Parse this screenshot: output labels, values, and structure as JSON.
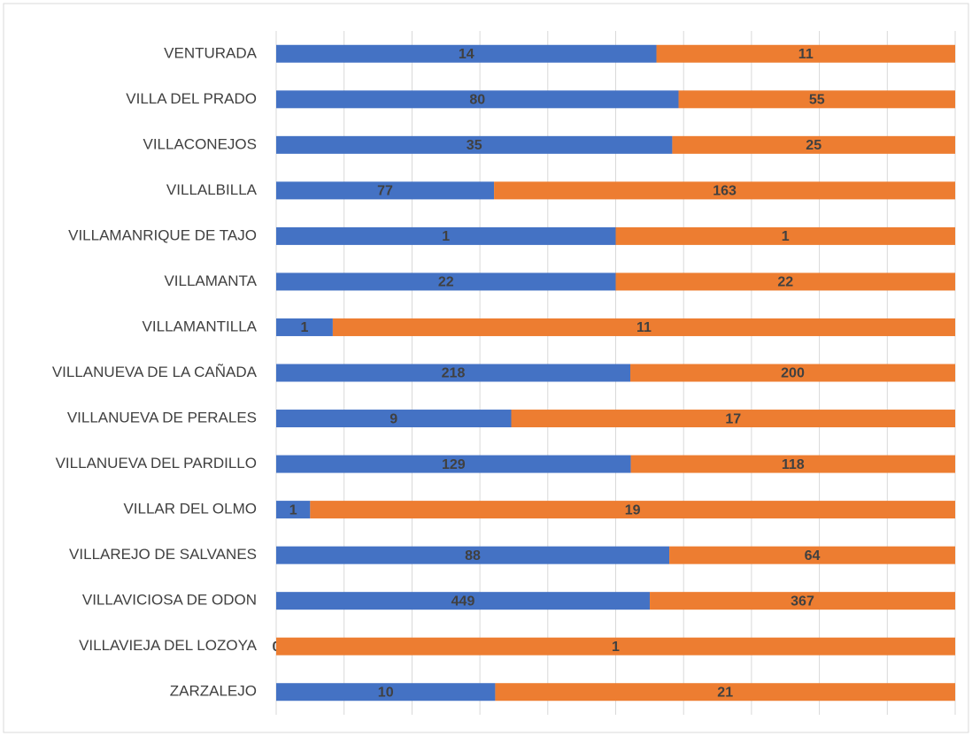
{
  "chart_data": {
    "type": "bar",
    "stacked": "percent",
    "orientation": "horizontal",
    "grid": true,
    "categories": [
      "VENTURADA",
      "VILLA DEL PRADO",
      "VILLACONEJOS",
      "VILLALBILLA",
      "VILLAMANRIQUE DE TAJO",
      "VILLAMANTA",
      "VILLAMANTILLA",
      "VILLANUEVA DE LA CAÑADA",
      "VILLANUEVA DE PERALES",
      "VILLANUEVA DEL PARDILLO",
      "VILLAR DEL OLMO",
      "VILLAREJO DE SALVANES",
      "VILLAVICIOSA DE ODON",
      "VILLAVIEJA DEL LOZOYA",
      "ZARZALEJO"
    ],
    "series": [
      {
        "color": "#4472c4",
        "values": [
          14,
          80,
          35,
          77,
          1,
          22,
          1,
          218,
          9,
          129,
          1,
          88,
          449,
          0,
          10
        ]
      },
      {
        "color": "#ed7d31",
        "values": [
          11,
          55,
          25,
          163,
          1,
          22,
          11,
          200,
          17,
          118,
          19,
          64,
          367,
          1,
          21
        ]
      }
    ]
  }
}
